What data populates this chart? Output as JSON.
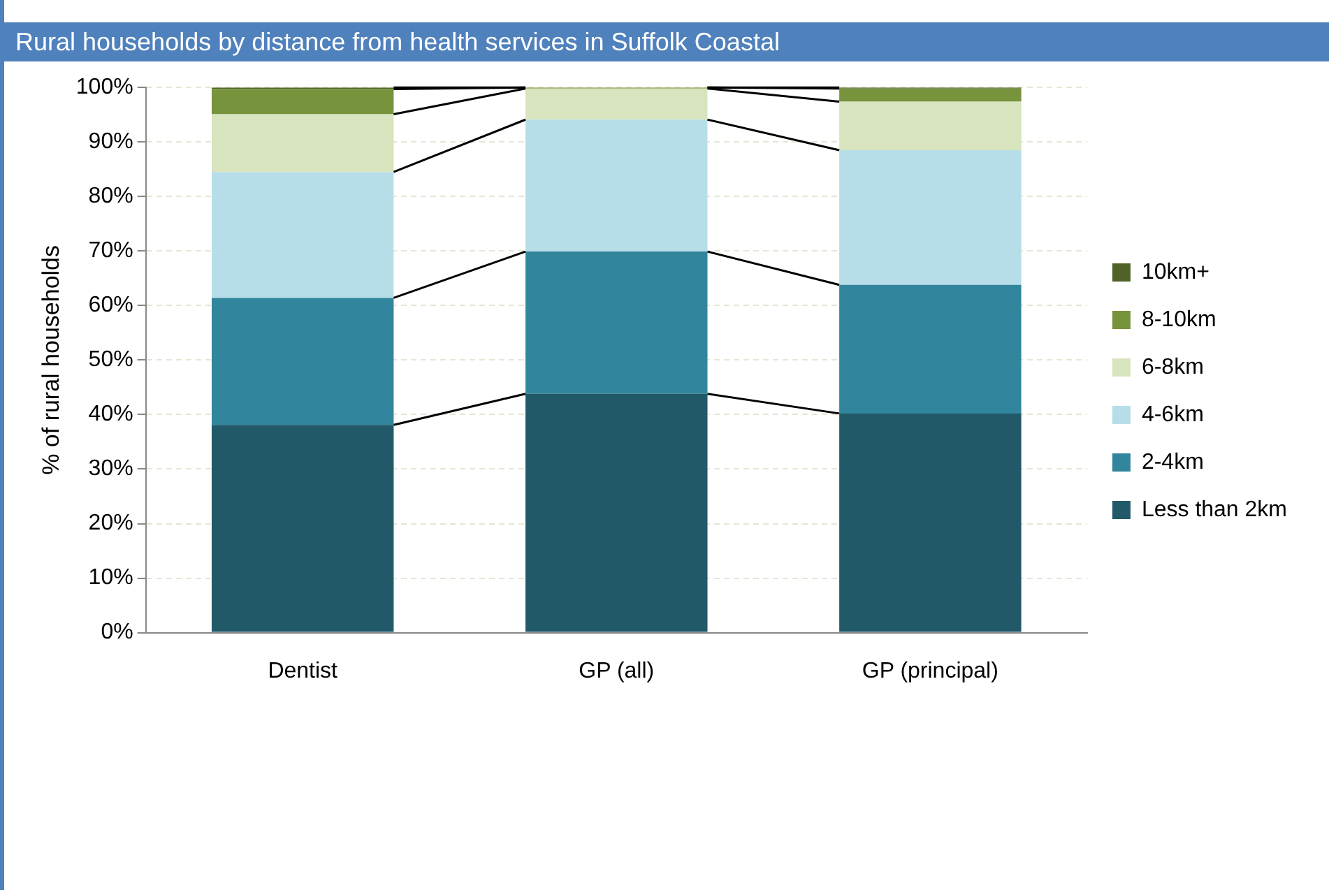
{
  "chart_data": {
    "type": "bar",
    "stacked": true,
    "title": "Rural households by distance from health services in Suffolk Coastal",
    "ylabel": "% of rural households",
    "categories": [
      "Dentist",
      "GP (all)",
      "GP (principal)"
    ],
    "series": [
      {
        "name": "Less than 2km",
        "color": "#215968",
        "values": [
          38.1,
          43.8,
          40.2
        ]
      },
      {
        "name": "2-4km",
        "color": "#31859c",
        "values": [
          23.3,
          26.1,
          23.6
        ]
      },
      {
        "name": "4-6km",
        "color": "#b7dee8",
        "values": [
          23.1,
          24.2,
          24.7
        ]
      },
      {
        "name": "6-8km",
        "color": "#d7e4bd",
        "values": [
          10.6,
          5.7,
          8.9
        ]
      },
      {
        "name": "8-10km",
        "color": "#77933c",
        "values": [
          4.6,
          0.2,
          2.4
        ]
      },
      {
        "name": "10km+",
        "color": "#4f6228",
        "values": [
          0.3,
          0,
          0.2
        ]
      }
    ],
    "ylim": [
      0,
      100
    ],
    "yticks": [
      {
        "value": 0,
        "label": "0%"
      },
      {
        "value": 10,
        "label": "10%"
      },
      {
        "value": 20,
        "label": "20%"
      },
      {
        "value": 30,
        "label": "30%"
      },
      {
        "value": 40,
        "label": "40%"
      },
      {
        "value": 50,
        "label": "50%"
      },
      {
        "value": 60,
        "label": "60%"
      },
      {
        "value": 70,
        "label": "70%"
      },
      {
        "value": 80,
        "label": "80%"
      },
      {
        "value": 90,
        "label": "90%"
      },
      {
        "value": 100,
        "label": "100%"
      }
    ],
    "grid": "y",
    "legend": "right"
  }
}
